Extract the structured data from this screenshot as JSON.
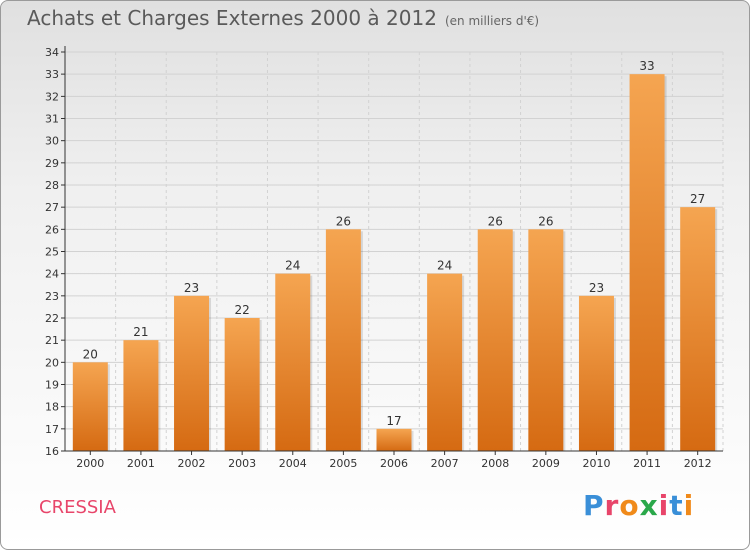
{
  "header": {
    "title": "Achats et Charges Externes 2000 à 2012",
    "subtitle": "(en milliers d'€)"
  },
  "footer": {
    "commune": "CRESSIA",
    "brand": "Proxiti",
    "brand_colors": [
      "#3a8fd8",
      "#e8456a",
      "#f08a1a",
      "#2aa84a",
      "#e8456a",
      "#3a8fd8",
      "#f08a1a"
    ]
  },
  "colors": {
    "bar_top": "#f5a551",
    "bar_bottom": "#d56a12",
    "grid": "#d2d2d2",
    "axis": "#333333"
  },
  "chart_data": {
    "type": "bar",
    "title": "Achats et Charges Externes 2000 à 2012",
    "subtitle": "(en milliers d'€)",
    "categories": [
      "2000",
      "2001",
      "2002",
      "2003",
      "2004",
      "2005",
      "2006",
      "2007",
      "2008",
      "2009",
      "2010",
      "2011",
      "2012"
    ],
    "values": [
      20,
      21,
      23,
      22,
      24,
      26,
      17,
      24,
      26,
      26,
      23,
      33,
      27
    ],
    "value_labels": [
      "20",
      "21",
      "23",
      "22",
      "24",
      "26",
      "17",
      "24",
      "26",
      "26",
      "23",
      "33",
      "27"
    ],
    "y_ticks": [
      "16",
      "17",
      "18",
      "19",
      "20",
      "21",
      "22",
      "23",
      "24",
      "25",
      "26",
      "27",
      "28",
      "29",
      "30",
      "31",
      "32",
      "33",
      "34"
    ],
    "ylim": [
      16,
      34
    ],
    "grid": true,
    "legend": "none"
  }
}
